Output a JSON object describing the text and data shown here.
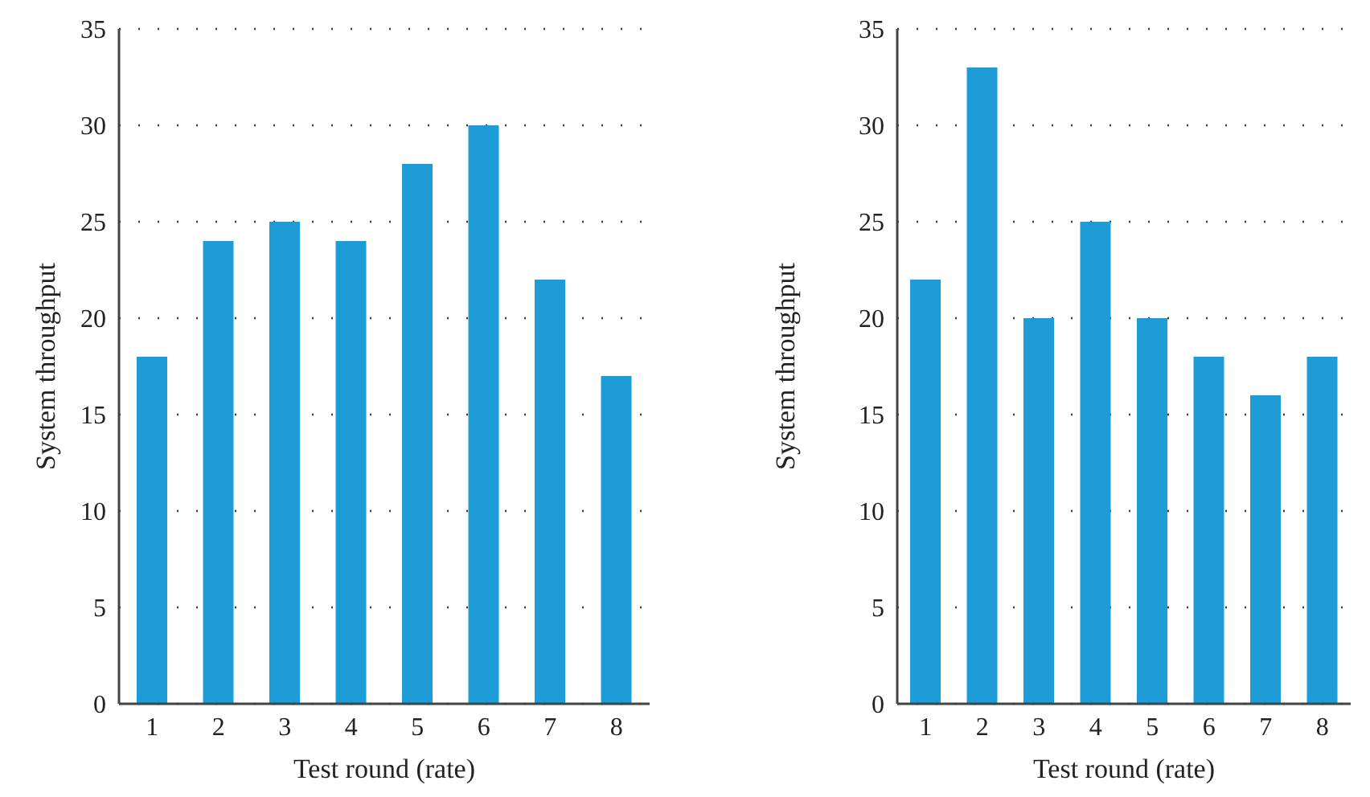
{
  "chart_data": [
    {
      "type": "bar",
      "xlabel": "Test round (rate)",
      "ylabel": "System throughput",
      "categories": [
        "1",
        "2",
        "3",
        "4",
        "5",
        "6",
        "7",
        "8"
      ],
      "values": [
        18,
        24,
        25,
        24,
        28,
        30,
        22,
        17
      ],
      "color": "#1e9cd7",
      "ylim": [
        0,
        35
      ],
      "yticks": [
        0,
        5,
        10,
        15,
        20,
        25,
        30,
        35
      ],
      "grid": "y"
    },
    {
      "type": "bar",
      "xlabel": "Test round (rate)",
      "ylabel": "System throughput",
      "categories": [
        "1",
        "2",
        "3",
        "4",
        "5",
        "6",
        "7",
        "8"
      ],
      "values": [
        22,
        33,
        20,
        25,
        20,
        18,
        16,
        18
      ],
      "color": "#1e9cd7",
      "ylim": [
        0,
        35
      ],
      "yticks": [
        0,
        5,
        10,
        15,
        20,
        25,
        30,
        35
      ],
      "grid": "y"
    }
  ]
}
